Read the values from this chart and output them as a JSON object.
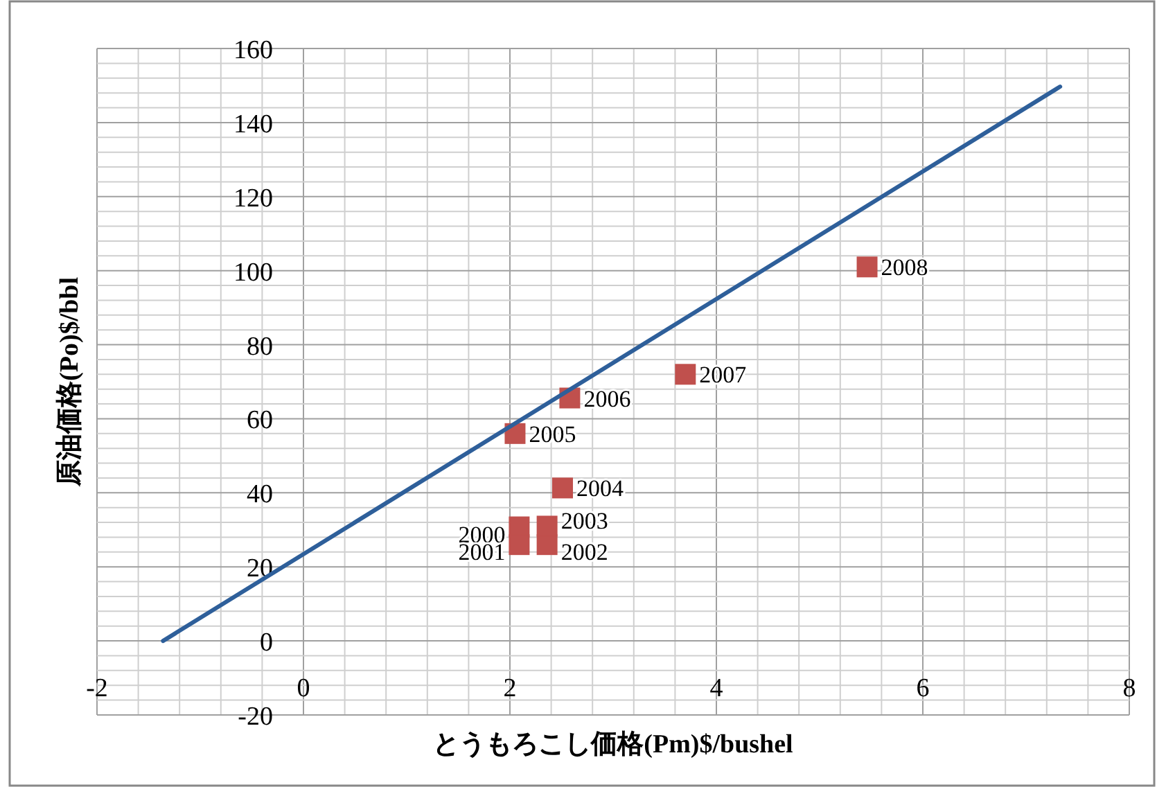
{
  "chart_data": {
    "type": "scatter",
    "xlabel": "とうもろこし価格(Pm)$/bushel",
    "ylabel": "原油価格(Po)$/bbl",
    "xlim": [
      -2,
      8
    ],
    "xticks": [
      -2,
      0,
      2,
      4,
      6,
      8
    ],
    "ylim": [
      -20,
      160
    ],
    "yticks": [
      -20,
      0,
      20,
      40,
      60,
      80,
      100,
      120,
      140,
      160
    ],
    "grid": true,
    "series": [
      {
        "type": "scatter",
        "marker": "square",
        "color": "#c0504d",
        "x": [
          2.09,
          2.09,
          2.36,
          2.36,
          2.51,
          2.05,
          2.58,
          3.7,
          5.46
        ],
        "values": [
          30.8,
          26,
          26,
          31,
          41.3,
          56,
          65.6,
          72,
          101
        ]
      },
      {
        "type": "line",
        "color": "#2e5f9a",
        "x": [
          -1.36,
          7.33
        ],
        "values": [
          0,
          149.7
        ]
      }
    ],
    "annotations": [
      {
        "text": "2000",
        "x": 2.09,
        "y": 30.8
      },
      {
        "text": "2001",
        "x": 2.09,
        "y": 26
      },
      {
        "text": "2002",
        "x": 2.36,
        "y": 26
      },
      {
        "text": "2003",
        "x": 2.36,
        "y": 31
      },
      {
        "text": "2004",
        "x": 2.51,
        "y": 41.3
      },
      {
        "text": "2005",
        "x": 2.05,
        "y": 56
      },
      {
        "text": "2006",
        "x": 2.58,
        "y": 65.6
      },
      {
        "text": "2007",
        "x": 3.7,
        "y": 72
      },
      {
        "text": "2008",
        "x": 5.46,
        "y": 101
      }
    ]
  }
}
